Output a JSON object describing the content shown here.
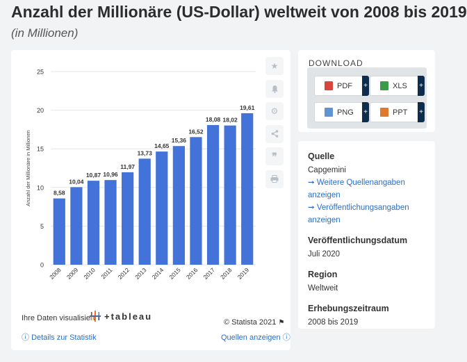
{
  "header": {
    "title": "Anzahl der Millionäre (US-Dollar) weltweit von 2008 bis 2019",
    "subtitle": "(in Millionen)"
  },
  "chart_data": {
    "type": "bar",
    "categories": [
      "2008",
      "2009",
      "2010",
      "2011",
      "2012",
      "2013",
      "2014",
      "2015",
      "2016",
      "2017",
      "2018",
      "2019"
    ],
    "values": [
      8.58,
      10.04,
      10.87,
      10.96,
      11.97,
      13.73,
      14.65,
      15.36,
      16.52,
      18.08,
      18.02,
      19.61
    ],
    "value_labels": [
      "8,58",
      "10,04",
      "10,87",
      "10,96",
      "11,97",
      "13,73",
      "14,65",
      "15,36",
      "16,52",
      "18,08",
      "18,02",
      "19,61"
    ],
    "ylabel": "Anzahl der Millionäre in Millionen",
    "xlabel": "",
    "ylim": [
      0,
      25
    ],
    "yticks": [
      "0",
      "5",
      "10",
      "15",
      "20",
      "25"
    ],
    "bar_color": "#4373d8",
    "grid": true
  },
  "chart_footer": {
    "tableau_text": "Ihre Daten visualisiert",
    "tableau_brand": "+tableau",
    "copyright": "© Statista 2021",
    "details_link": "Details zur Statistik",
    "sources_link": "Quellen anzeigen"
  },
  "side_buttons": [
    {
      "icon": "star-icon"
    },
    {
      "icon": "bell-icon"
    },
    {
      "icon": "gear-icon"
    },
    {
      "icon": "share-icon"
    },
    {
      "icon": "quote-icon"
    },
    {
      "icon": "print-icon"
    }
  ],
  "download": {
    "title": "DOWNLOAD",
    "buttons": [
      {
        "label": "PDF",
        "color": "#d9453a"
      },
      {
        "label": "XLS",
        "color": "#3c9b4a"
      },
      {
        "label": "PNG",
        "color": "#5f93d1"
      },
      {
        "label": "PPT",
        "color": "#e0782e"
      }
    ],
    "plus": "+"
  },
  "info": {
    "source_heading": "Quelle",
    "source_value": "Capgemini",
    "more_sources": "➞ Weitere Quellenangaben anzeigen",
    "publication_info": "➞ Veröffentlichungsangaben anzeigen",
    "pubdate_heading": "Veröffentlichungsdatum",
    "pubdate_value": "Juli 2020",
    "region_heading": "Region",
    "region_value": "Weltweit",
    "period_heading": "Erhebungszeitraum",
    "period_value": "2008 bis 2019"
  }
}
